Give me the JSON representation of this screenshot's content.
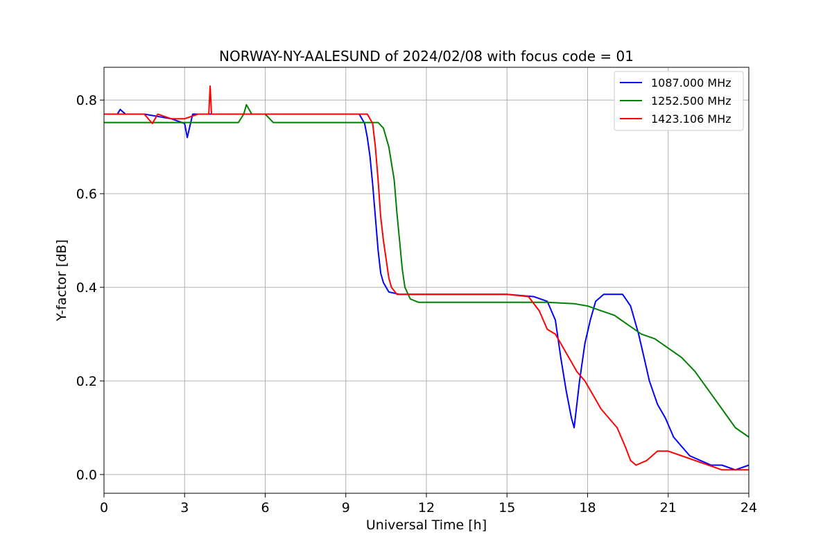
{
  "chart_data": {
    "type": "line",
    "title": "NORWAY-NY-AALESUND of 2024/02/08 with focus code = 01",
    "xlabel": "Universal Time [h]",
    "ylabel": "Y-factor [dB]",
    "xlim": [
      0,
      24
    ],
    "ylim": [
      -0.04,
      0.87
    ],
    "x_ticks": [
      0,
      3,
      6,
      9,
      12,
      15,
      18,
      21,
      24
    ],
    "x_tick_labels": [
      "0",
      "3",
      "6",
      "9",
      "12",
      "15",
      "18",
      "21",
      "24"
    ],
    "y_ticks": [
      0.0,
      0.2,
      0.4,
      0.6,
      0.8
    ],
    "y_tick_labels": [
      "0.0",
      "0.2",
      "0.4",
      "0.6",
      "0.8"
    ],
    "grid": true,
    "legend_position": "top-right",
    "series": [
      {
        "name": "1087.000 MHz",
        "color": "#0000ff",
        "points": [
          [
            0,
            0.77
          ],
          [
            0.5,
            0.77
          ],
          [
            0.6,
            0.78
          ],
          [
            0.8,
            0.77
          ],
          [
            1.5,
            0.77
          ],
          [
            2.5,
            0.76
          ],
          [
            3.0,
            0.75
          ],
          [
            3.1,
            0.72
          ],
          [
            3.3,
            0.77
          ],
          [
            5.0,
            0.77
          ],
          [
            9.5,
            0.77
          ],
          [
            9.7,
            0.75
          ],
          [
            9.8,
            0.72
          ],
          [
            9.9,
            0.68
          ],
          [
            10.0,
            0.62
          ],
          [
            10.1,
            0.55
          ],
          [
            10.2,
            0.48
          ],
          [
            10.3,
            0.43
          ],
          [
            10.4,
            0.41
          ],
          [
            10.6,
            0.39
          ],
          [
            11.0,
            0.385
          ],
          [
            13.0,
            0.385
          ],
          [
            15.0,
            0.385
          ],
          [
            16.0,
            0.38
          ],
          [
            16.5,
            0.37
          ],
          [
            16.8,
            0.33
          ],
          [
            17.0,
            0.25
          ],
          [
            17.2,
            0.18
          ],
          [
            17.4,
            0.12
          ],
          [
            17.5,
            0.1
          ],
          [
            17.7,
            0.2
          ],
          [
            17.9,
            0.28
          ],
          [
            18.1,
            0.33
          ],
          [
            18.3,
            0.37
          ],
          [
            18.6,
            0.385
          ],
          [
            19.3,
            0.385
          ],
          [
            19.6,
            0.36
          ],
          [
            19.9,
            0.3
          ],
          [
            20.1,
            0.25
          ],
          [
            20.3,
            0.2
          ],
          [
            20.6,
            0.15
          ],
          [
            20.9,
            0.12
          ],
          [
            21.2,
            0.08
          ],
          [
            21.5,
            0.06
          ],
          [
            21.8,
            0.04
          ],
          [
            22.2,
            0.03
          ],
          [
            22.6,
            0.02
          ],
          [
            23.0,
            0.02
          ],
          [
            23.5,
            0.01
          ],
          [
            24.0,
            0.02
          ]
        ]
      },
      {
        "name": "1252.500 MHz",
        "color": "#008000",
        "points": [
          [
            0,
            0.752
          ],
          [
            0.5,
            0.752
          ],
          [
            1.0,
            0.752
          ],
          [
            5.0,
            0.752
          ],
          [
            5.2,
            0.77
          ],
          [
            5.3,
            0.79
          ],
          [
            5.5,
            0.77
          ],
          [
            6.0,
            0.77
          ],
          [
            6.3,
            0.752
          ],
          [
            9.8,
            0.752
          ],
          [
            10.2,
            0.752
          ],
          [
            10.4,
            0.74
          ],
          [
            10.6,
            0.7
          ],
          [
            10.8,
            0.63
          ],
          [
            10.9,
            0.56
          ],
          [
            11.0,
            0.5
          ],
          [
            11.1,
            0.44
          ],
          [
            11.2,
            0.4
          ],
          [
            11.4,
            0.375
          ],
          [
            11.7,
            0.368
          ],
          [
            12.0,
            0.368
          ],
          [
            15.0,
            0.368
          ],
          [
            16.5,
            0.368
          ],
          [
            17.5,
            0.365
          ],
          [
            18.0,
            0.36
          ],
          [
            18.5,
            0.35
          ],
          [
            19.0,
            0.34
          ],
          [
            19.5,
            0.32
          ],
          [
            20.0,
            0.3
          ],
          [
            20.5,
            0.29
          ],
          [
            21.0,
            0.27
          ],
          [
            21.5,
            0.25
          ],
          [
            22.0,
            0.22
          ],
          [
            22.5,
            0.18
          ],
          [
            23.0,
            0.14
          ],
          [
            23.5,
            0.1
          ],
          [
            24.0,
            0.08
          ]
        ]
      },
      {
        "name": "1423.106 MHz",
        "color": "#ff0000",
        "points": [
          [
            0,
            0.77
          ],
          [
            1.5,
            0.77
          ],
          [
            1.8,
            0.75
          ],
          [
            2.0,
            0.77
          ],
          [
            2.5,
            0.76
          ],
          [
            3.0,
            0.76
          ],
          [
            3.5,
            0.77
          ],
          [
            3.9,
            0.77
          ],
          [
            3.95,
            0.83
          ],
          [
            4.0,
            0.77
          ],
          [
            9.8,
            0.77
          ],
          [
            10.0,
            0.75
          ],
          [
            10.1,
            0.7
          ],
          [
            10.2,
            0.63
          ],
          [
            10.3,
            0.55
          ],
          [
            10.4,
            0.5
          ],
          [
            10.5,
            0.46
          ],
          [
            10.6,
            0.42
          ],
          [
            10.7,
            0.4
          ],
          [
            10.9,
            0.385
          ],
          [
            12.0,
            0.385
          ],
          [
            15.0,
            0.385
          ],
          [
            15.8,
            0.38
          ],
          [
            16.2,
            0.35
          ],
          [
            16.5,
            0.31
          ],
          [
            16.8,
            0.3
          ],
          [
            17.0,
            0.28
          ],
          [
            17.3,
            0.25
          ],
          [
            17.6,
            0.22
          ],
          [
            17.9,
            0.2
          ],
          [
            18.2,
            0.17
          ],
          [
            18.5,
            0.14
          ],
          [
            18.8,
            0.12
          ],
          [
            19.1,
            0.1
          ],
          [
            19.4,
            0.06
          ],
          [
            19.6,
            0.03
          ],
          [
            19.8,
            0.02
          ],
          [
            20.2,
            0.03
          ],
          [
            20.6,
            0.05
          ],
          [
            21.0,
            0.05
          ],
          [
            21.5,
            0.04
          ],
          [
            22.0,
            0.03
          ],
          [
            22.5,
            0.02
          ],
          [
            23.0,
            0.01
          ],
          [
            23.5,
            0.01
          ],
          [
            24.0,
            0.01
          ]
        ]
      }
    ]
  }
}
